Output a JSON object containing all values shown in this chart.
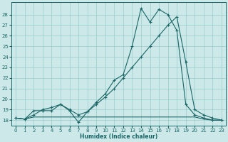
{
  "xlabel": "Humidex (Indice chaleur)",
  "bg_color": "#cce8e8",
  "grid_color": "#99cccc",
  "line_color": "#1a6666",
  "xlim": [
    -0.5,
    23.5
  ],
  "ylim": [
    17.5,
    29.2
  ],
  "x_ticks": [
    0,
    1,
    2,
    3,
    4,
    5,
    6,
    7,
    8,
    9,
    10,
    11,
    12,
    13,
    14,
    15,
    16,
    17,
    18,
    19,
    20,
    21,
    22,
    23
  ],
  "y_ticks": [
    18,
    19,
    20,
    21,
    22,
    23,
    24,
    25,
    26,
    27,
    28
  ],
  "s1_x": [
    0,
    1,
    2,
    3,
    4,
    5,
    6,
    7,
    8,
    9,
    10,
    11,
    12,
    13,
    14,
    15,
    16,
    17,
    18,
    19,
    20,
    21,
    22,
    23
  ],
  "s1_y": [
    18.2,
    18.1,
    18.9,
    18.9,
    18.9,
    19.5,
    18.9,
    17.8,
    18.8,
    19.7,
    20.5,
    21.8,
    22.3,
    25.0,
    28.6,
    27.3,
    28.5,
    28.0,
    26.5,
    19.5,
    18.5,
    18.2,
    18.0,
    18.0
  ],
  "s2_x": [
    0,
    1,
    2,
    3,
    4,
    5,
    6,
    7,
    8,
    9,
    10,
    11,
    12,
    13,
    14,
    15,
    16,
    17,
    18,
    19,
    20,
    21,
    22,
    23
  ],
  "s2_y": [
    18.2,
    18.1,
    18.3,
    18.3,
    18.3,
    18.3,
    18.3,
    18.3,
    18.3,
    18.3,
    18.3,
    18.3,
    18.3,
    18.3,
    18.3,
    18.3,
    18.3,
    18.3,
    18.3,
    18.3,
    18.3,
    18.1,
    18.0,
    18.0
  ],
  "s3_x": [
    0,
    1,
    2,
    3,
    4,
    5,
    6,
    7,
    8,
    9,
    10,
    11,
    12,
    13,
    14,
    15,
    16,
    17,
    18,
    19,
    20,
    21,
    22,
    23
  ],
  "s3_y": [
    18.2,
    18.1,
    18.5,
    19.0,
    19.2,
    19.5,
    19.0,
    18.5,
    18.8,
    19.5,
    20.2,
    21.0,
    22.0,
    23.0,
    24.0,
    25.0,
    26.0,
    27.0,
    27.8,
    23.5,
    19.0,
    18.5,
    18.2,
    18.0
  ]
}
